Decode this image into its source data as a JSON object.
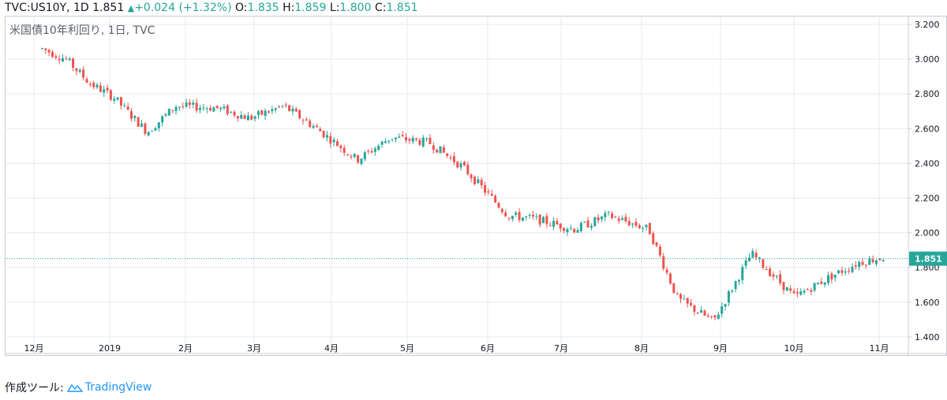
{
  "header": {
    "symbol": "TVC:US10Y, 1D",
    "last": "1.851",
    "change_arrow": "▲",
    "change": "+0.024 (+1.32%)",
    "open_label": "O:",
    "open": "1.835",
    "high_label": "H:",
    "high": "1.859",
    "low_label": "L:",
    "low": "1.800",
    "close_label": "C:",
    "close": "1.851"
  },
  "legend": "米国債10年利回り, 1日, TVC",
  "footer": {
    "label": "作成ツール:",
    "brand": "TradingView"
  },
  "colors": {
    "up": "#26a69a",
    "down": "#ef5350",
    "grid": "#e6eaef",
    "axis_text": "#131722",
    "price_line": "#26a69a"
  },
  "chart_data": {
    "type": "line",
    "title": "米国債10年利回り, 1日, TVC",
    "xlabel": "",
    "ylabel": "",
    "ylim": [
      1.3,
      3.25
    ],
    "y_ticks": [
      "3.200",
      "3.000",
      "2.800",
      "2.600",
      "2.400",
      "2.200",
      "2.000",
      "1.800",
      "1.600",
      "1.400"
    ],
    "x_ticks": [
      "12月",
      "2019",
      "2月",
      "3月",
      "4月",
      "5月",
      "6月",
      "7月",
      "8月",
      "9月",
      "10月",
      "11月"
    ],
    "current_price": "1.851",
    "series": [
      {
        "x": [
          "2018-11-20",
          "2018-11-30",
          "2018-12-10",
          "2018-12-20",
          "2019-01-03",
          "2019-01-15",
          "2019-02-01",
          "2019-02-15",
          "2019-03-01",
          "2019-03-15",
          "2019-04-01",
          "2019-04-15",
          "2019-05-01",
          "2019-05-15",
          "2019-06-03",
          "2019-06-14",
          "2019-07-01",
          "2019-07-15",
          "2019-08-01",
          "2019-08-13",
          "2019-08-28",
          "2019-09-13",
          "2019-10-01",
          "2019-10-15",
          "2019-10-28",
          "2019-11-08"
        ],
        "values": [
          3.06,
          3.0,
          2.86,
          2.78,
          2.58,
          2.73,
          2.72,
          2.66,
          2.73,
          2.6,
          2.42,
          2.55,
          2.52,
          2.38,
          2.1,
          2.08,
          2.02,
          2.1,
          2.02,
          1.62,
          1.49,
          1.88,
          1.63,
          1.74,
          1.83,
          1.86
        ]
      }
    ]
  }
}
